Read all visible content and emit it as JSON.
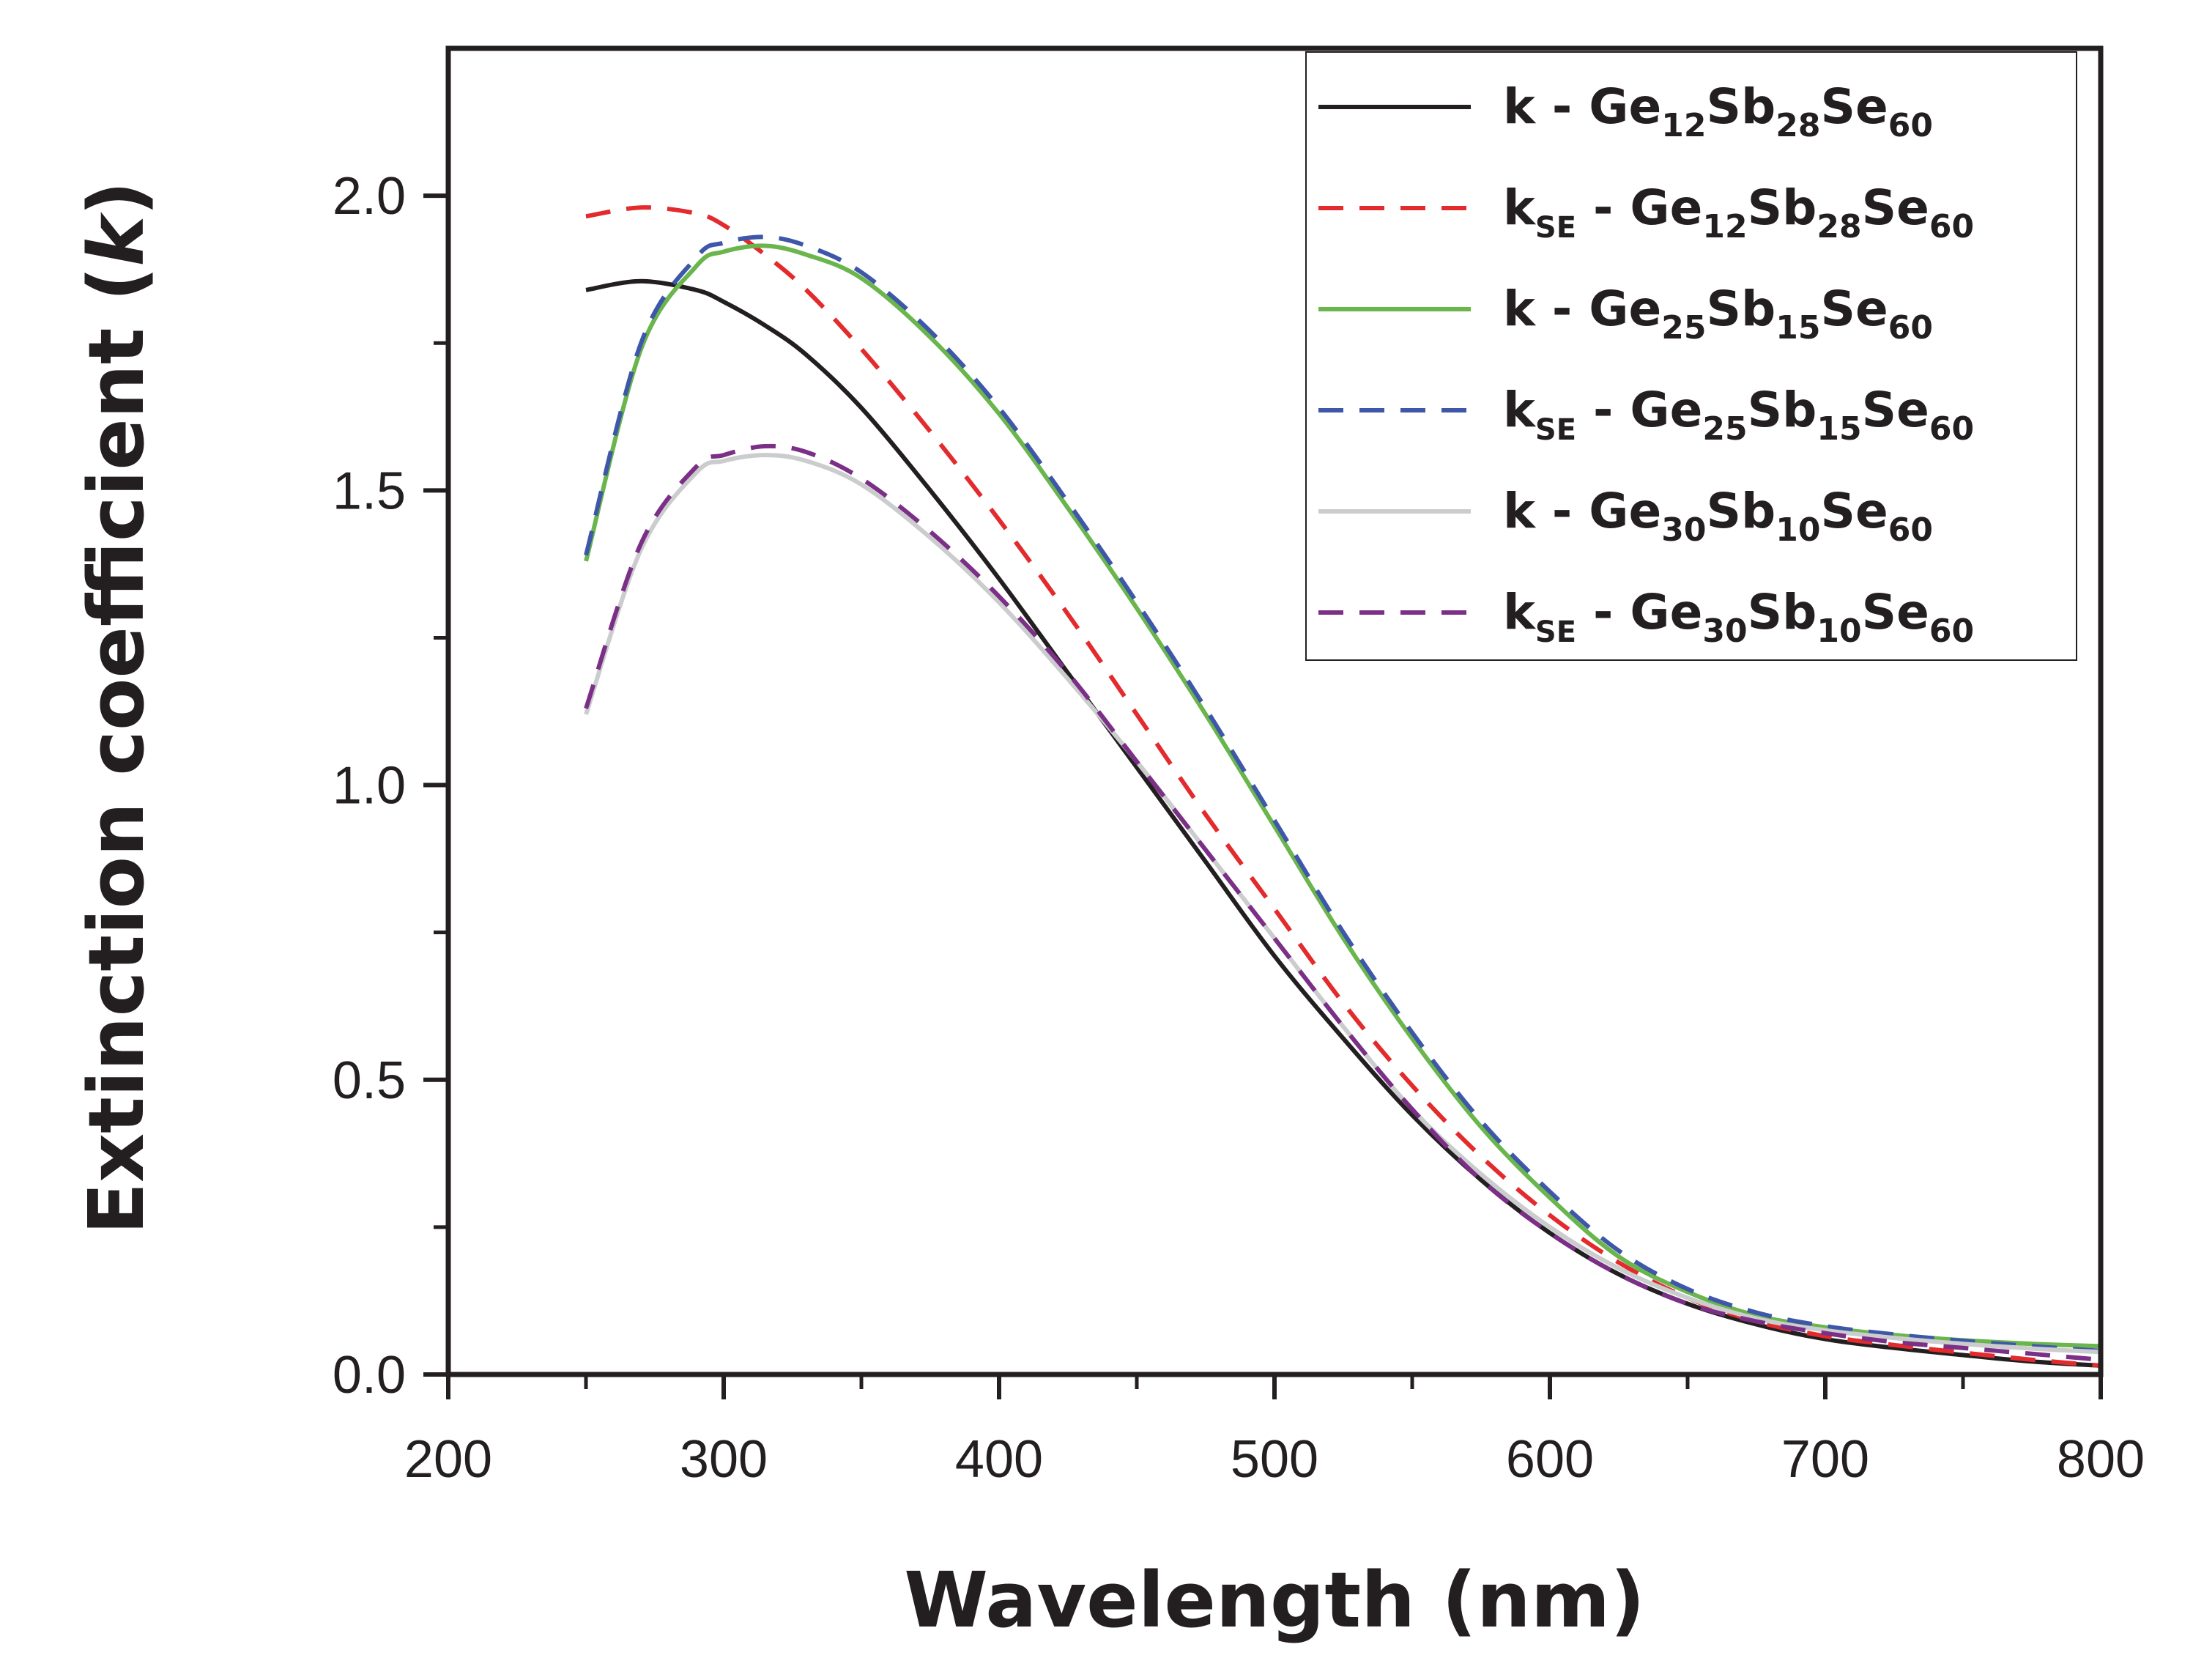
{
  "chart_data": {
    "type": "line",
    "xlabel": "Wavelength (nm)",
    "ylabel": {
      "prefix": "Extinction coefficient (",
      "var": "k",
      "suffix": ")"
    },
    "xlim": [
      200,
      800
    ],
    "ylim": [
      0,
      2.25
    ],
    "xticks": [
      200,
      300,
      400,
      500,
      600,
      700,
      800
    ],
    "xtick_labels": [
      "200",
      "300",
      "400",
      "500",
      "600",
      "700",
      "800"
    ],
    "yticks": [
      0,
      0.5,
      1.0,
      1.5,
      2.0
    ],
    "ytick_labels": [
      "0.0",
      "0.5",
      "1.0",
      "1.5",
      "2.0"
    ],
    "legend_position": "top-right",
    "x": [
      250,
      270,
      290,
      300,
      315,
      330,
      350,
      375,
      400,
      425,
      450,
      475,
      500,
      525,
      550,
      575,
      600,
      625,
      650,
      675,
      700,
      725,
      750,
      775,
      800
    ],
    "series": [
      {
        "name": "k - Ge12Sb28Se60",
        "legend": {
          "sym": "k",
          "sym_sub": "",
          "parts": [
            [
              "Ge",
              "12"
            ],
            [
              "Sb",
              "28"
            ],
            [
              "Se",
              "60"
            ]
          ]
        },
        "color": "#231f20",
        "dash": "solid",
        "values": [
          1.84,
          1.855,
          1.84,
          1.82,
          1.78,
          1.73,
          1.64,
          1.5,
          1.35,
          1.19,
          1.03,
          0.87,
          0.71,
          0.57,
          0.44,
          0.33,
          0.24,
          0.17,
          0.12,
          0.085,
          0.06,
          0.045,
          0.033,
          0.022,
          0.015
        ]
      },
      {
        "name": "kSE - Ge12Sb28Se60",
        "legend": {
          "sym": "k",
          "sym_sub": "SE",
          "parts": [
            [
              "Ge",
              "12"
            ],
            [
              "Sb",
              "28"
            ],
            [
              "Se",
              "60"
            ]
          ]
        },
        "color": "#e32b2e",
        "dash": "dashed",
        "values": [
          1.965,
          1.98,
          1.97,
          1.95,
          1.9,
          1.84,
          1.74,
          1.6,
          1.45,
          1.29,
          1.12,
          0.95,
          0.79,
          0.63,
          0.49,
          0.37,
          0.27,
          0.19,
          0.13,
          0.09,
          0.065,
          0.05,
          0.037,
          0.025,
          0.015
        ]
      },
      {
        "name": "k - Ge25Sb15Se60",
        "legend": {
          "sym": "k",
          "sym_sub": "",
          "parts": [
            [
              "Ge",
              "25"
            ],
            [
              "Sb",
              "15"
            ],
            [
              "Se",
              "60"
            ]
          ]
        },
        "color": "#6ab54c",
        "dash": "solid",
        "values": [
          1.38,
          1.74,
          1.88,
          1.905,
          1.915,
          1.9,
          1.86,
          1.76,
          1.63,
          1.47,
          1.3,
          1.12,
          0.93,
          0.74,
          0.57,
          0.42,
          0.3,
          0.2,
          0.14,
          0.1,
          0.08,
          0.067,
          0.058,
          0.052,
          0.048
        ]
      },
      {
        "name": "kSE - Ge25Sb15Se60",
        "legend": {
          "sym": "k",
          "sym_sub": "SE",
          "parts": [
            [
              "Ge",
              "25"
            ],
            [
              "Sb",
              "15"
            ],
            [
              "Se",
              "60"
            ]
          ]
        },
        "color": "#3e57a8",
        "dash": "dashed",
        "values": [
          1.39,
          1.75,
          1.895,
          1.92,
          1.93,
          1.915,
          1.87,
          1.77,
          1.64,
          1.48,
          1.31,
          1.13,
          0.94,
          0.75,
          0.58,
          0.43,
          0.31,
          0.21,
          0.145,
          0.105,
          0.082,
          0.068,
          0.057,
          0.048,
          0.04
        ]
      },
      {
        "name": "k - Ge30Sb10Se60",
        "legend": {
          "sym": "k",
          "sym_sub": "",
          "parts": [
            [
              "Ge",
              "30"
            ],
            [
              "Sb",
              "10"
            ],
            [
              "Se",
              "60"
            ]
          ]
        },
        "color": "#cbcccd",
        "dash": "solid",
        "values": [
          1.12,
          1.4,
          1.53,
          1.55,
          1.56,
          1.55,
          1.51,
          1.42,
          1.31,
          1.18,
          1.04,
          0.89,
          0.74,
          0.59,
          0.45,
          0.34,
          0.25,
          0.18,
          0.13,
          0.095,
          0.075,
          0.062,
          0.052,
          0.044,
          0.038
        ]
      },
      {
        "name": "kSE - Ge30Sb10Se60",
        "legend": {
          "sym": "k",
          "sym_sub": "SE",
          "parts": [
            [
              "Ge",
              "30"
            ],
            [
              "Sb",
              "10"
            ],
            [
              "Se",
              "60"
            ]
          ]
        },
        "color": "#7b2f86",
        "dash": "dashed",
        "values": [
          1.13,
          1.41,
          1.54,
          1.56,
          1.575,
          1.565,
          1.52,
          1.43,
          1.32,
          1.19,
          1.04,
          0.89,
          0.74,
          0.59,
          0.45,
          0.33,
          0.24,
          0.17,
          0.12,
          0.09,
          0.07,
          0.055,
          0.045,
          0.035,
          0.025
        ]
      }
    ]
  }
}
